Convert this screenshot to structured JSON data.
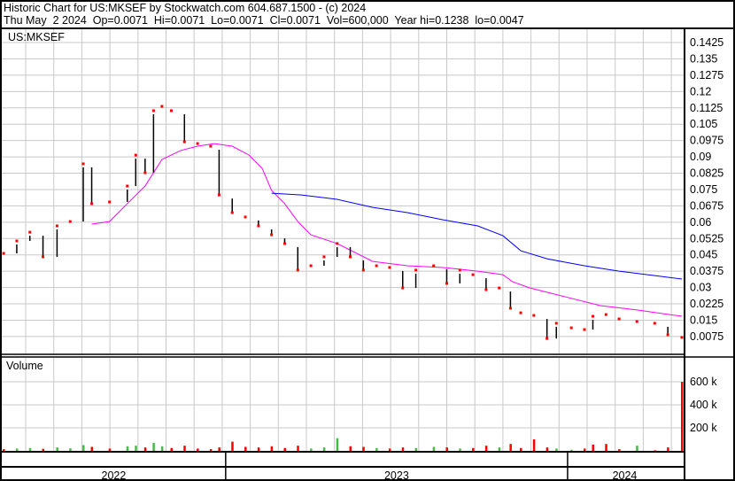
{
  "header": {
    "title": "Historic Chart for US:MKSEF by Stockwatch.com 604.687.1500 - (c) 2024",
    "quote_line": "Thu May  2 2024  Op=0.0071  Hi=0.0071  Lo=0.0071  Cl=0.0071  Vol=600,000  Year hi=0.1238  lo=0.0047"
  },
  "chart_data": {
    "type": "line",
    "symbol_label": "US:MKSEF",
    "volume_label": "Volume",
    "date_range": [
      "2022-05-07",
      "2024-05-02"
    ],
    "price_axis": {
      "ylim": [
        0.0,
        0.15
      ],
      "ticks": [
        "0.1425",
        "0.135",
        "0.1275",
        "0.12",
        "0.1125",
        "0.105",
        "0.0975",
        "0.09",
        "0.0825",
        "0.075",
        "0.0675",
        "0.06",
        "0.0525",
        "0.045",
        "0.0375",
        "0.03",
        "0.0225",
        "0.015",
        "0.0075"
      ]
    },
    "volume_axis": {
      "ticks": [
        "600 k",
        "400 k",
        "200 k"
      ],
      "tick_values": [
        600,
        400,
        200
      ],
      "unit": "k"
    },
    "year_labels": [
      {
        "label": "2022",
        "start": "2022-05-07",
        "end": "2023-01-01"
      },
      {
        "label": "2023",
        "start": "2023-01-01",
        "end": "2024-01-01"
      },
      {
        "label": "2024",
        "start": "2024-01-01",
        "end": "2024-05-02"
      }
    ],
    "grid": true,
    "colors": {
      "close": "#ff0000",
      "ma_short": "#ff00ff",
      "ma_long": "#0000ff",
      "vol_up": "#44bb44",
      "vol_down": "#ff0000",
      "grid": "#c8c8c8"
    },
    "closes": [
      [
        "2022-05-09",
        0.0457
      ],
      [
        "2022-05-23",
        0.0514
      ],
      [
        "2022-06-06",
        0.0554
      ],
      [
        "2022-06-20",
        0.0441
      ],
      [
        "2022-07-05",
        0.0583
      ],
      [
        "2022-07-19",
        0.0603
      ],
      [
        "2022-08-02",
        0.0868
      ],
      [
        "2022-08-11",
        0.0685
      ],
      [
        "2022-08-30",
        0.0693
      ],
      [
        "2022-09-18",
        0.0766
      ],
      [
        "2022-09-27",
        0.0908
      ],
      [
        "2022-10-07",
        0.0827
      ],
      [
        "2022-10-16",
        0.1112
      ],
      [
        "2022-10-25",
        0.1132
      ],
      [
        "2022-11-04",
        0.1112
      ],
      [
        "2022-11-18",
        0.0969
      ],
      [
        "2022-12-02",
        0.0961
      ],
      [
        "2022-12-16",
        0.0949
      ],
      [
        "2022-12-25",
        0.0725
      ],
      [
        "2023-01-08",
        0.0644
      ],
      [
        "2023-01-22",
        0.0624
      ],
      [
        "2023-02-05",
        0.0583
      ],
      [
        "2023-02-19",
        0.0542
      ],
      [
        "2023-03-05",
        0.0502
      ],
      [
        "2023-03-19",
        0.038
      ],
      [
        "2023-04-02",
        0.04
      ],
      [
        "2023-04-16",
        0.0441
      ],
      [
        "2023-04-30",
        0.0502
      ],
      [
        "2023-05-14",
        0.0441
      ],
      [
        "2023-05-28",
        0.038
      ],
      [
        "2023-06-11",
        0.04
      ],
      [
        "2023-06-25",
        0.0392
      ],
      [
        "2023-07-09",
        0.0298
      ],
      [
        "2023-07-23",
        0.038
      ],
      [
        "2023-08-11",
        0.04
      ],
      [
        "2023-08-25",
        0.0319
      ],
      [
        "2023-09-08",
        0.038
      ],
      [
        "2023-09-22",
        0.0359
      ],
      [
        "2023-10-06",
        0.029
      ],
      [
        "2023-10-20",
        0.0298
      ],
      [
        "2023-11-01",
        0.0205
      ],
      [
        "2023-11-12",
        0.0184
      ],
      [
        "2023-11-26",
        0.0172
      ],
      [
        "2023-12-10",
        0.0066
      ],
      [
        "2023-12-20",
        0.0136
      ],
      [
        "2024-01-05",
        0.0115
      ],
      [
        "2024-01-19",
        0.0107
      ],
      [
        "2024-01-28",
        0.0168
      ],
      [
        "2024-02-11",
        0.0176
      ],
      [
        "2024-02-25",
        0.0156
      ],
      [
        "2024-03-15",
        0.0144
      ],
      [
        "2024-04-03",
        0.0136
      ],
      [
        "2024-04-17",
        0.0083
      ],
      [
        "2024-05-02",
        0.0071
      ]
    ],
    "ma_short": [
      [
        "2022-08-11",
        0.0591
      ],
      [
        "2022-08-30",
        0.0603
      ],
      [
        "2022-09-18",
        0.0685
      ],
      [
        "2022-10-07",
        0.0766
      ],
      [
        "2022-10-25",
        0.0888
      ],
      [
        "2022-11-14",
        0.0929
      ],
      [
        "2022-12-02",
        0.0949
      ],
      [
        "2022-12-20",
        0.0961
      ],
      [
        "2023-01-08",
        0.0949
      ],
      [
        "2023-01-26",
        0.0908
      ],
      [
        "2023-02-09",
        0.0847
      ],
      [
        "2023-02-19",
        0.0746
      ],
      [
        "2023-03-05",
        0.0685
      ],
      [
        "2023-03-19",
        0.0603
      ],
      [
        "2023-04-02",
        0.0542
      ],
      [
        "2023-04-30",
        0.0502
      ],
      [
        "2023-06-07",
        0.042
      ],
      [
        "2023-07-14",
        0.04
      ],
      [
        "2023-08-21",
        0.0392
      ],
      [
        "2023-09-27",
        0.0375
      ],
      [
        "2023-10-24",
        0.0359
      ],
      [
        "2023-11-03",
        0.0327
      ],
      [
        "2023-11-22",
        0.0298
      ],
      [
        "2023-12-29",
        0.0258
      ],
      [
        "2024-02-05",
        0.0217
      ],
      [
        "2024-03-15",
        0.0197
      ],
      [
        "2024-05-02",
        0.0168
      ]
    ],
    "ma_long": [
      [
        "2023-02-19",
        0.0733
      ],
      [
        "2023-03-23",
        0.0725
      ],
      [
        "2023-04-30",
        0.0705
      ],
      [
        "2023-06-07",
        0.0668
      ],
      [
        "2023-07-14",
        0.0644
      ],
      [
        "2023-08-21",
        0.0611
      ],
      [
        "2023-09-27",
        0.0583
      ],
      [
        "2023-10-24",
        0.0538
      ],
      [
        "2023-11-12",
        0.0469
      ],
      [
        "2023-12-10",
        0.0432
      ],
      [
        "2024-01-19",
        0.04
      ],
      [
        "2024-02-25",
        0.0375
      ],
      [
        "2024-04-03",
        0.0355
      ],
      [
        "2024-05-02",
        0.0339
      ]
    ],
    "volume": [
      [
        "2022-05-09",
        15,
        "down"
      ],
      [
        "2022-05-23",
        20,
        "up"
      ],
      [
        "2022-06-06",
        25,
        "up"
      ],
      [
        "2022-06-20",
        18,
        "down"
      ],
      [
        "2022-07-05",
        30,
        "up"
      ],
      [
        "2022-07-19",
        22,
        "up"
      ],
      [
        "2022-08-02",
        50,
        "up"
      ],
      [
        "2022-08-11",
        35,
        "down"
      ],
      [
        "2022-08-30",
        20,
        "down"
      ],
      [
        "2022-09-18",
        40,
        "up"
      ],
      [
        "2022-09-27",
        45,
        "up"
      ],
      [
        "2022-10-07",
        30,
        "down"
      ],
      [
        "2022-10-16",
        70,
        "up"
      ],
      [
        "2022-10-25",
        40,
        "up"
      ],
      [
        "2022-11-04",
        25,
        "down"
      ],
      [
        "2022-11-18",
        45,
        "down"
      ],
      [
        "2022-12-02",
        20,
        "down"
      ],
      [
        "2022-12-16",
        15,
        "down"
      ],
      [
        "2022-12-25",
        30,
        "down"
      ],
      [
        "2023-01-08",
        80,
        "down"
      ],
      [
        "2023-01-22",
        35,
        "down"
      ],
      [
        "2023-02-05",
        30,
        "down"
      ],
      [
        "2023-02-19",
        40,
        "down"
      ],
      [
        "2023-03-05",
        25,
        "down"
      ],
      [
        "2023-03-19",
        45,
        "down"
      ],
      [
        "2023-04-02",
        20,
        "up"
      ],
      [
        "2023-04-16",
        30,
        "up"
      ],
      [
        "2023-04-30",
        110,
        "up"
      ],
      [
        "2023-05-14",
        40,
        "down"
      ],
      [
        "2023-05-28",
        35,
        "down"
      ],
      [
        "2023-06-11",
        25,
        "up"
      ],
      [
        "2023-06-25",
        20,
        "down"
      ],
      [
        "2023-07-09",
        30,
        "down"
      ],
      [
        "2023-07-23",
        25,
        "up"
      ],
      [
        "2023-08-11",
        35,
        "up"
      ],
      [
        "2023-08-25",
        30,
        "down"
      ],
      [
        "2023-09-08",
        20,
        "up"
      ],
      [
        "2023-09-22",
        25,
        "down"
      ],
      [
        "2023-10-06",
        45,
        "down"
      ],
      [
        "2023-10-20",
        30,
        "up"
      ],
      [
        "2023-11-01",
        60,
        "down"
      ],
      [
        "2023-11-12",
        25,
        "down"
      ],
      [
        "2023-11-26",
        100,
        "down"
      ],
      [
        "2023-12-10",
        30,
        "down"
      ],
      [
        "2023-12-20",
        20,
        "up"
      ],
      [
        "2024-01-05",
        10,
        "up"
      ],
      [
        "2024-01-19",
        20,
        "down"
      ],
      [
        "2024-01-28",
        55,
        "down"
      ],
      [
        "2024-02-11",
        60,
        "down"
      ],
      [
        "2024-02-25",
        15,
        "down"
      ],
      [
        "2024-03-15",
        45,
        "up"
      ],
      [
        "2024-04-03",
        5,
        "down"
      ],
      [
        "2024-04-17",
        30,
        "down"
      ],
      [
        "2024-05-02",
        600,
        "down"
      ]
    ]
  }
}
